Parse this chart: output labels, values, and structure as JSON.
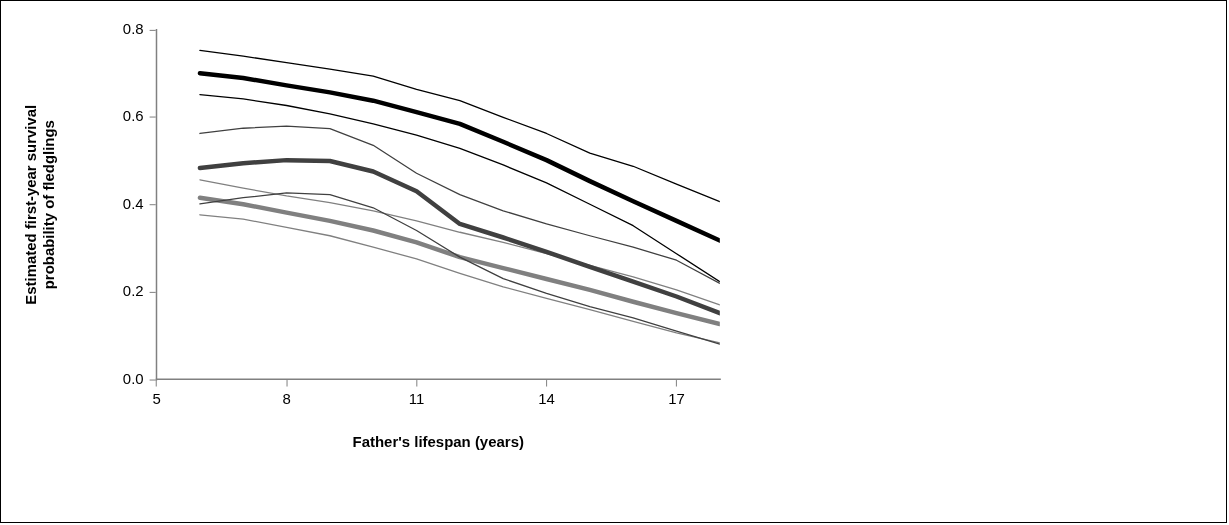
{
  "chart_data": {
    "type": "line",
    "xlabel": "Father's lifespan (years)",
    "ylabel": "Estimated first-year survival\nprobability of fledglings",
    "x": [
      6,
      7,
      8,
      9,
      10,
      11,
      12,
      13,
      14,
      15,
      16,
      17,
      18
    ],
    "xlim": [
      5,
      18
    ],
    "xticks": [
      5,
      8,
      11,
      14,
      17
    ],
    "ylim": [
      0,
      0.8
    ],
    "yticks": [
      {
        "value": 0,
        "label": "0.0"
      },
      {
        "value": 0.2,
        "label": "0.2"
      },
      {
        "value": 0.4,
        "label": "0.4"
      },
      {
        "value": 0.6,
        "label": "0.6"
      },
      {
        "value": 0.8,
        "label": "0.8"
      }
    ],
    "grid": false,
    "legend": false,
    "marker": "none",
    "line_style": "solid",
    "series": [
      {
        "color": "#000000",
        "values": [
          0.753,
          0.74,
          0.725,
          0.71,
          0.694,
          0.664,
          0.638,
          0.6,
          0.563,
          0.518,
          0.488,
          0.447,
          0.407
        ]
      },
      {
        "color": "#000000",
        "values": [
          0.701,
          0.69,
          0.673,
          0.657,
          0.638,
          0.612,
          0.585,
          0.544,
          0.502,
          0.454,
          0.408,
          0.363,
          0.318
        ]
      },
      {
        "color": "#000000",
        "values": [
          0.652,
          0.642,
          0.627,
          0.608,
          0.585,
          0.559,
          0.529,
          0.491,
          0.45,
          0.401,
          0.352,
          0.288,
          0.224
        ]
      },
      {
        "color": "#404040",
        "values": [
          0.563,
          0.575,
          0.58,
          0.574,
          0.536,
          0.472,
          0.423,
          0.386,
          0.356,
          0.329,
          0.303,
          0.273,
          0.22
        ]
      },
      {
        "color": "#404040",
        "values": [
          0.484,
          0.495,
          0.502,
          0.5,
          0.476,
          0.431,
          0.356,
          0.325,
          0.292,
          0.258,
          0.224,
          0.19,
          0.152
        ]
      },
      {
        "color": "#404040",
        "values": [
          0.402,
          0.416,
          0.427,
          0.423,
          0.393,
          0.341,
          0.28,
          0.231,
          0.197,
          0.167,
          0.141,
          0.111,
          0.081
        ]
      },
      {
        "color": "#808080",
        "values": [
          0.457,
          0.438,
          0.42,
          0.405,
          0.386,
          0.363,
          0.337,
          0.314,
          0.288,
          0.261,
          0.235,
          0.205,
          0.171
        ]
      },
      {
        "color": "#808080",
        "values": [
          0.416,
          0.401,
          0.382,
          0.363,
          0.341,
          0.314,
          0.28,
          0.255,
          0.23,
          0.205,
          0.178,
          0.152,
          0.127
        ]
      },
      {
        "color": "#808080",
        "values": [
          0.377,
          0.367,
          0.348,
          0.329,
          0.303,
          0.276,
          0.243,
          0.212,
          0.186,
          0.16,
          0.133,
          0.107,
          0.084
        ]
      }
    ]
  }
}
